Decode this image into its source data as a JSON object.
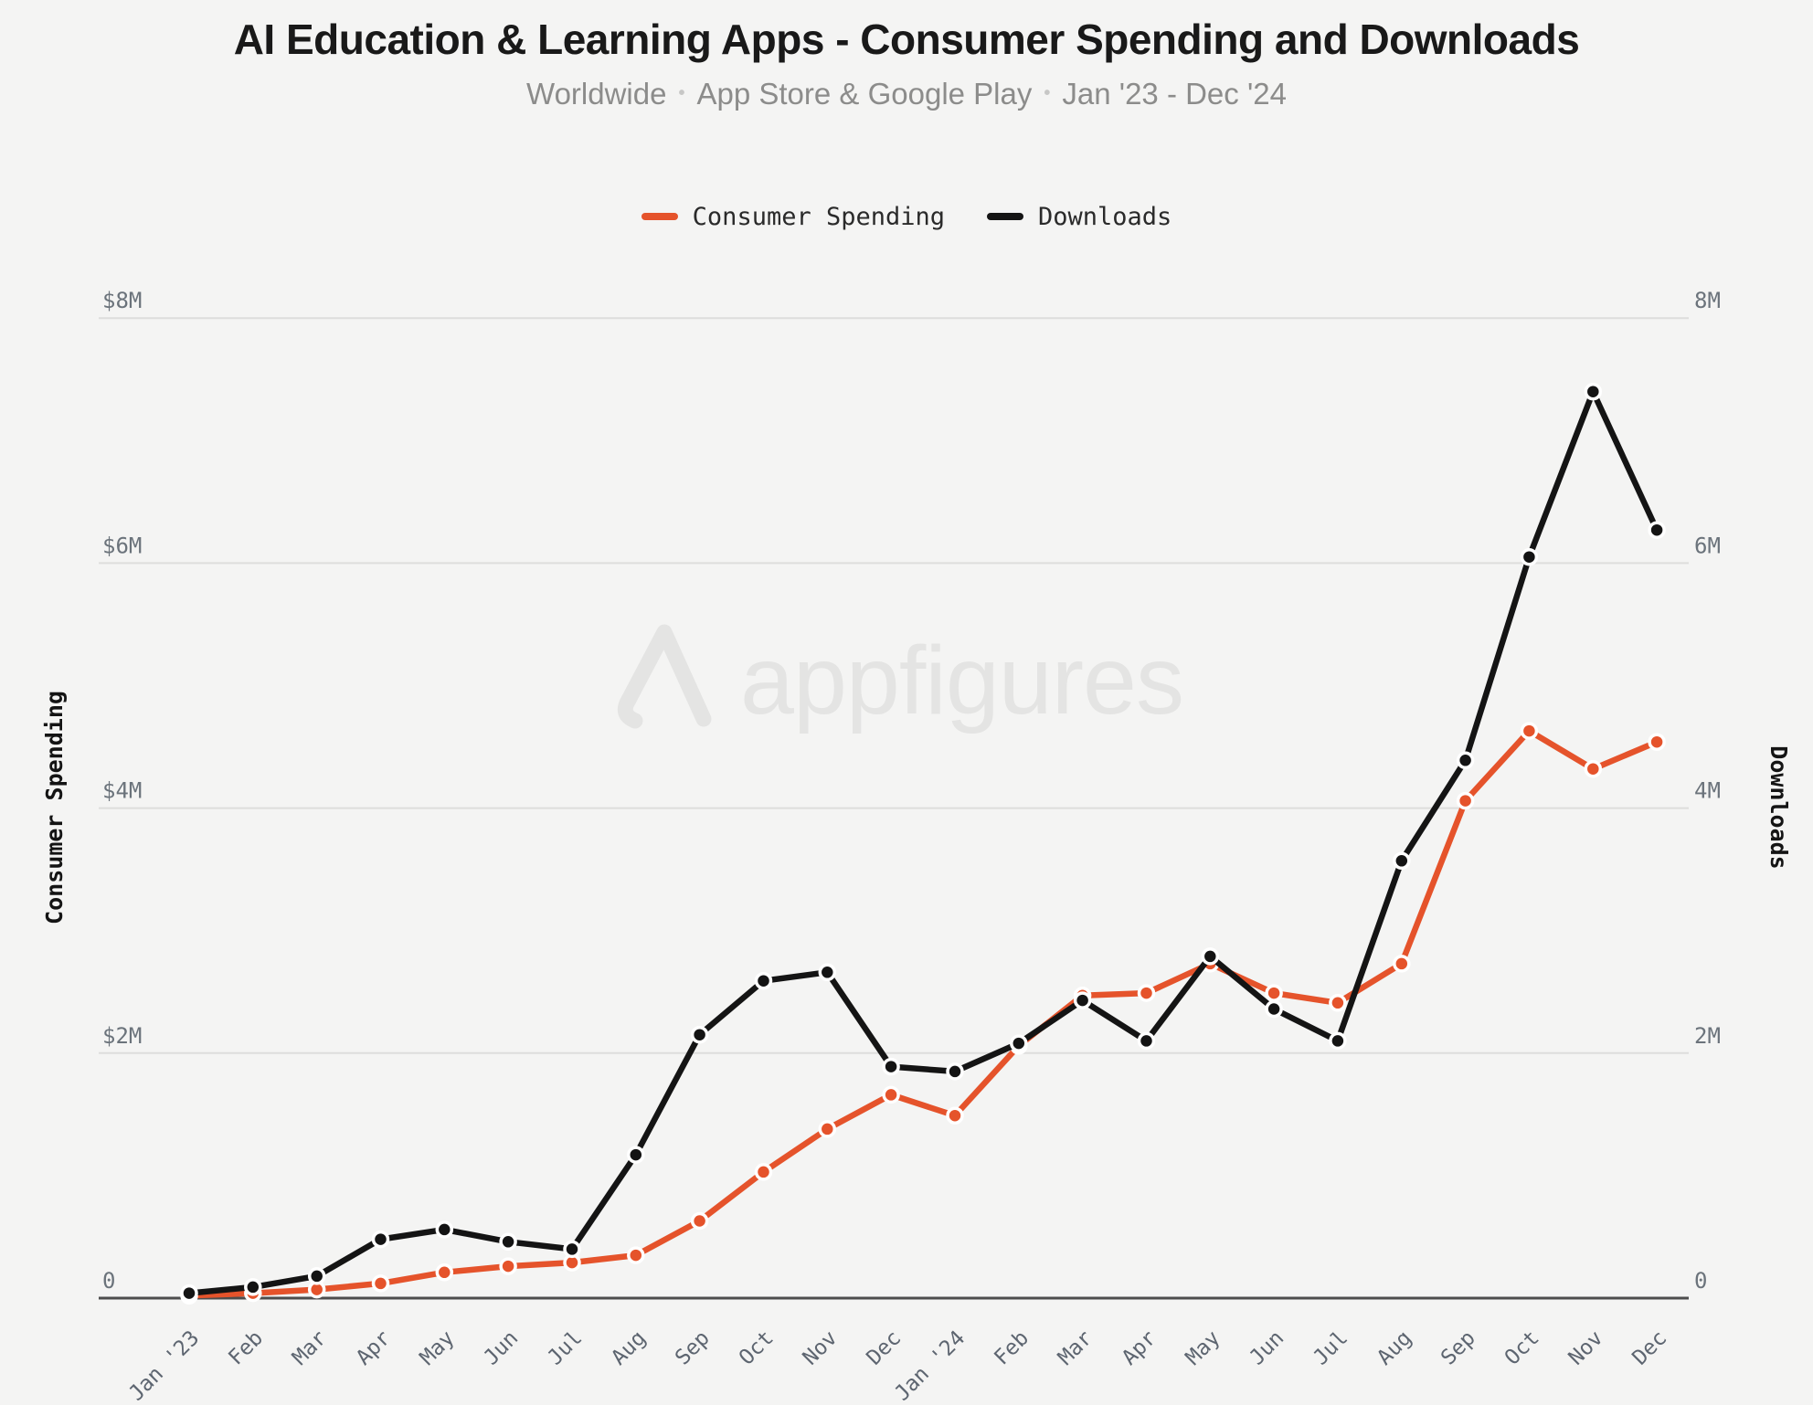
{
  "header": {
    "title": "AI Education & Learning Apps - Consumer Spending and Downloads",
    "subtitle": {
      "part1": "Worldwide",
      "part2": "App Store & Google Play",
      "part3": "Jan '23 - Dec '24",
      "separator": "•"
    }
  },
  "legend": [
    {
      "label": "Consumer Spending",
      "color": "#e5532b"
    },
    {
      "label": "Downloads",
      "color": "#141414"
    }
  ],
  "watermark": {
    "text": "appfigures",
    "logo": "appfigures-logo"
  },
  "colors": {
    "background": "#f4f4f3",
    "title": "#191919",
    "subtitle": "#8c8c8b",
    "subtitle_dot": "#c7c7c6",
    "legend_label": "#2a2a2a",
    "orange": "#e5532b",
    "black": "#141414",
    "grid": "#dddddc",
    "zero_axis": "#4d4d4d",
    "month_label": "#5d6570",
    "value_label": "#6b737b",
    "point_border": "#ffffff",
    "watermark": "#e4e4e3"
  },
  "chart_data": {
    "type": "line",
    "title": "AI Education & Learning Apps - Consumer Spending and Downloads",
    "subtitle": "Worldwide • App Store & Google Play • Jan '23 - Dec '24",
    "grid": "horizontal",
    "legend_position": "top",
    "categories": [
      "Jan '23",
      "Feb",
      "Mar",
      "Apr",
      "May",
      "Jun",
      "Jul",
      "Aug",
      "Sep",
      "Oct",
      "Nov",
      "Dec",
      "Jan '24",
      "Feb",
      "Mar",
      "Apr",
      "May",
      "Jun",
      "Jul",
      "Aug",
      "Sep",
      "Oct",
      "Nov",
      "Dec"
    ],
    "series": [
      {
        "id": "consumer-spending",
        "name": "Consumer Spending",
        "axis": "left",
        "unit": "USD millions",
        "color": "#e5532b",
        "values": [
          0.02,
          0.04,
          0.07,
          0.12,
          0.21,
          0.26,
          0.29,
          0.35,
          0.63,
          1.03,
          1.38,
          1.66,
          1.49,
          2.06,
          2.47,
          2.49,
          2.73,
          2.49,
          2.41,
          2.73,
          4.06,
          4.63,
          4.32,
          4.54
        ]
      },
      {
        "id": "downloads",
        "name": "Downloads",
        "axis": "right",
        "unit": "millions",
        "color": "#141414",
        "values": [
          0.04,
          0.09,
          0.18,
          0.48,
          0.56,
          0.46,
          0.4,
          1.17,
          2.15,
          2.59,
          2.66,
          1.89,
          1.85,
          2.08,
          2.43,
          2.1,
          2.79,
          2.36,
          2.1,
          3.57,
          4.39,
          6.05,
          7.4,
          6.27
        ]
      }
    ],
    "y_left": {
      "title": "Consumer Spending",
      "ticks": [
        "$8M",
        "$6M",
        "$4M",
        "$2M",
        "0"
      ],
      "tick_values": [
        8,
        6,
        4,
        2,
        0
      ],
      "range": [
        0,
        8
      ]
    },
    "y_right": {
      "title": "Downloads",
      "ticks": [
        "8M",
        "6M",
        "4M",
        "2M",
        "0"
      ],
      "tick_values": [
        8,
        6,
        4,
        2,
        0
      ],
      "range": [
        0,
        8
      ]
    }
  }
}
